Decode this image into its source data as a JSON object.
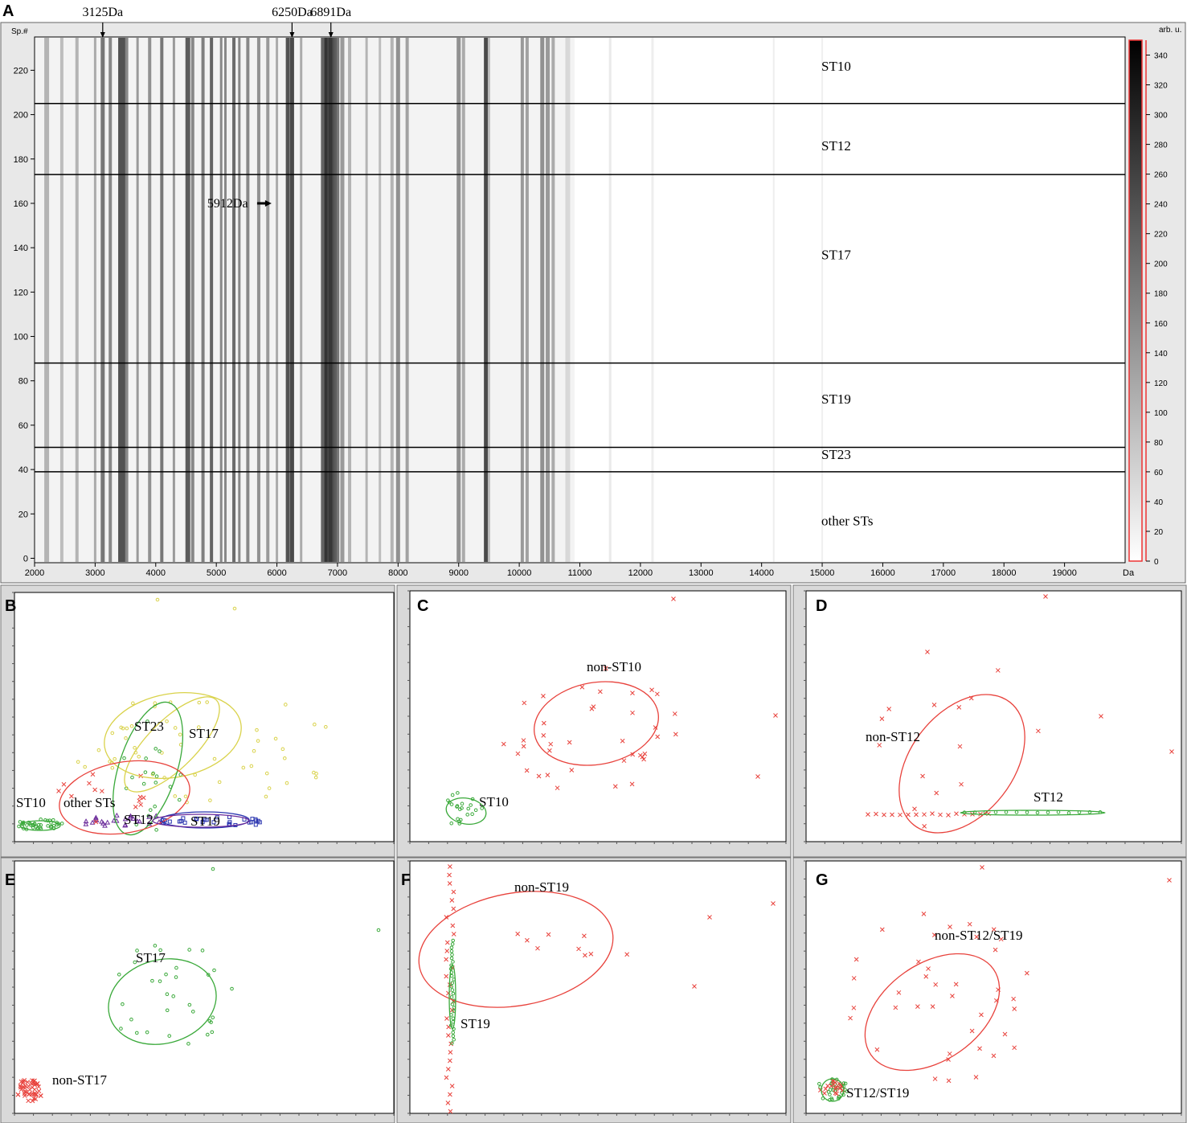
{
  "chart_data": [
    {
      "panel": "A",
      "type": "heatmap",
      "panel_label": "A",
      "y_axis_label": "Sp.#",
      "x_unit": "Da",
      "colorbar_label": "arb. u.",
      "x_ticks": [
        2000,
        3000,
        4000,
        5000,
        6000,
        7000,
        8000,
        9000,
        10000,
        11000,
        12000,
        13000,
        14000,
        15000,
        16000,
        17000,
        18000,
        19000
      ],
      "y_ticks": [
        0,
        20,
        40,
        60,
        80,
        100,
        120,
        140,
        160,
        180,
        200,
        220
      ],
      "colorbar_ticks": [
        0,
        20,
        40,
        60,
        80,
        100,
        120,
        140,
        160,
        180,
        200,
        220,
        240,
        260,
        280,
        300,
        320,
        340
      ],
      "xlim": [
        2000,
        20000
      ],
      "ylim": [
        -2,
        235
      ],
      "peak_annotations": [
        {
          "label": "3125Da",
          "x": 3125
        },
        {
          "label": "6250Da",
          "x": 6250
        },
        {
          "label": "6891Da",
          "x": 6891
        },
        {
          "label": "5912Da",
          "x": 5912,
          "y": 160
        }
      ],
      "group_boundaries": [
        205,
        173,
        88,
        50,
        39
      ],
      "groups": [
        {
          "name": "ST10",
          "y": 222
        },
        {
          "name": "ST12",
          "y": 186
        },
        {
          "name": "ST17",
          "y": 137
        },
        {
          "name": "ST19",
          "y": 72
        },
        {
          "name": "ST23",
          "y": 47
        },
        {
          "name": "other STs",
          "y": 17
        }
      ]
    },
    {
      "panel": "B",
      "type": "scatter",
      "panel_label": "B",
      "labels": [
        {
          "text": "ST23",
          "x": 19,
          "y": 19.5
        },
        {
          "text": "ST17",
          "x": 30,
          "y": 18.5
        },
        {
          "text": "ST10",
          "x": 1,
          "y": 5
        },
        {
          "text": "other STs",
          "x": 13,
          "y": 5
        },
        {
          "text": "ST12",
          "x": 23,
          "y": 1.9
        },
        {
          "text": "ST19",
          "x": 33,
          "y": 1.9
        }
      ]
    },
    {
      "panel": "C",
      "type": "scatter",
      "panel_label": "C",
      "labels": [
        {
          "text": "non-ST10",
          "x": 22,
          "y": 7.3
        },
        {
          "text": "ST10",
          "x": 8,
          "y": 2.5
        }
      ]
    },
    {
      "panel": "D",
      "type": "scatter",
      "panel_label": "D",
      "labels": [
        {
          "text": "non-ST12",
          "x": 5.5,
          "y": 21.5
        },
        {
          "text": "ST12",
          "x": 12.3,
          "y": 6
        }
      ]
    },
    {
      "panel": "E",
      "type": "scatter",
      "panel_label": "E",
      "labels": [
        {
          "text": "ST17",
          "x": 12.5,
          "y": 7.7
        },
        {
          "text": "non-ST17",
          "x": 3.5,
          "y": 0.7
        }
      ]
    },
    {
      "panel": "F",
      "type": "scatter",
      "panel_label": "F",
      "labels": [
        {
          "text": "non-ST19",
          "x": 14,
          "y": 34.5
        },
        {
          "text": "ST19",
          "x": 4.5,
          "y": 11
        }
      ]
    },
    {
      "panel": "G",
      "type": "scatter",
      "panel_label": "G",
      "labels": [
        {
          "text": "non-ST12/ST19",
          "x": 22,
          "y": 9.5
        },
        {
          "text": "ST12/ST19",
          "x": 5,
          "y": 0.9
        }
      ]
    }
  ],
  "colors": {
    "red": "#e8423c",
    "green": "#3aa93a",
    "yellow": "#d9d24a",
    "blue": "#2a35b0",
    "purple": "#6a2a9a",
    "frame": "#8a8a8a",
    "grid": "#000000"
  }
}
